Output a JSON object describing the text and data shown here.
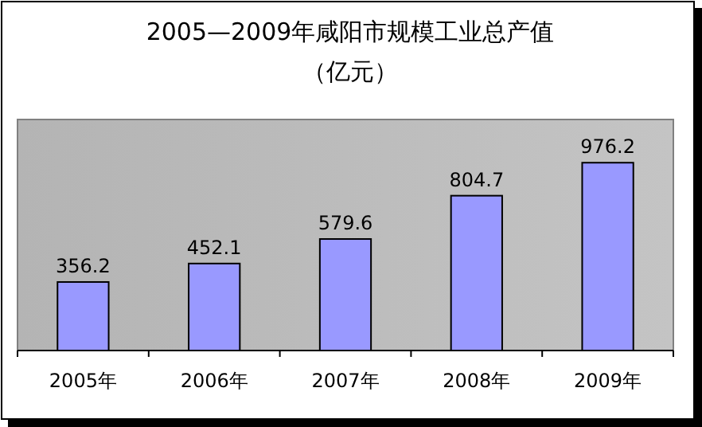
{
  "chart_data": {
    "type": "bar",
    "title": "2005—2009年咸阳市规模工业总产值",
    "subtitle": "（亿元）",
    "categories": [
      "2005年",
      "2006年",
      "2007年",
      "2008年",
      "2009年"
    ],
    "values": [
      356.2,
      452.1,
      579.6,
      804.7,
      976.2
    ],
    "color": "#9999ff",
    "data_labels": true
  }
}
